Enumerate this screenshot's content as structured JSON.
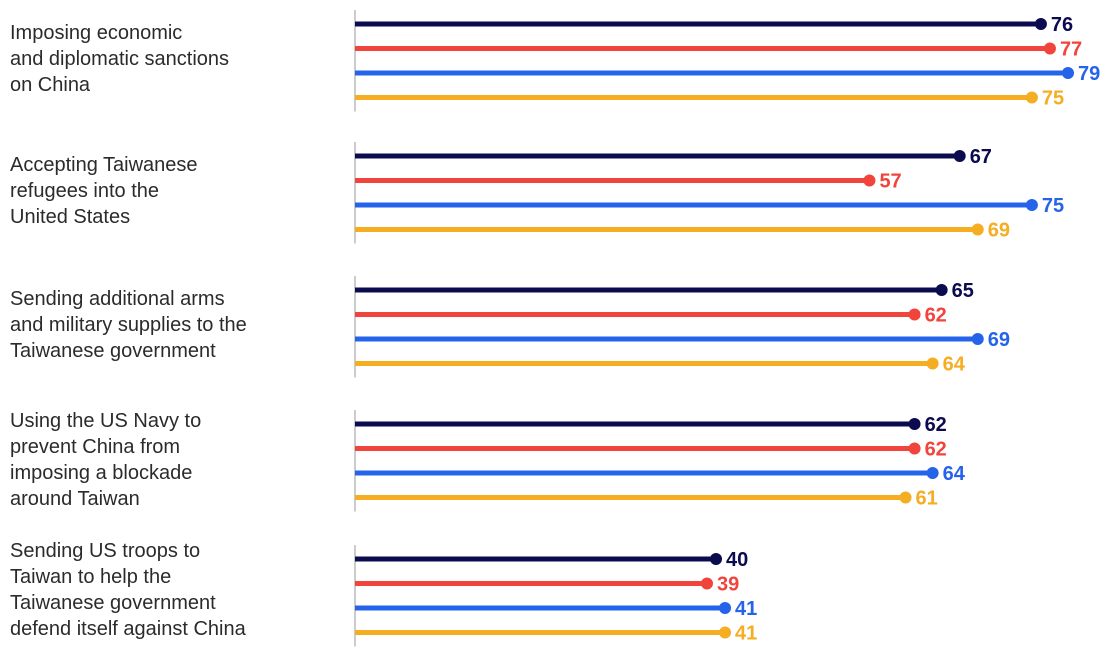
{
  "chart_data": {
    "type": "bar",
    "orientation": "horizontal",
    "style": "lollipop",
    "categories": [
      "Imposing economic\nand diplomatic sanctions\non China",
      "Accepting Taiwanese\nrefugees into the\nUnited States",
      "Sending additional arms\nand military supplies to the\nTaiwanese government",
      "Using the US Navy to\nprevent China from\nimposing a blockade\naround Taiwan",
      "Sending US troops to\nTaiwan to help the\nTaiwanese government\ndefend itself against China"
    ],
    "series": [
      {
        "color": "#0b0b4f",
        "values": [
          76,
          67,
          65,
          62,
          40
        ]
      },
      {
        "color": "#f0443c",
        "values": [
          77,
          57,
          62,
          62,
          39
        ]
      },
      {
        "color": "#2563eb",
        "values": [
          79,
          75,
          69,
          64,
          41
        ]
      },
      {
        "color": "#f5ad22",
        "values": [
          75,
          69,
          64,
          61,
          41
        ]
      }
    ],
    "data_labels": true,
    "legend": "none",
    "grid": false
  }
}
